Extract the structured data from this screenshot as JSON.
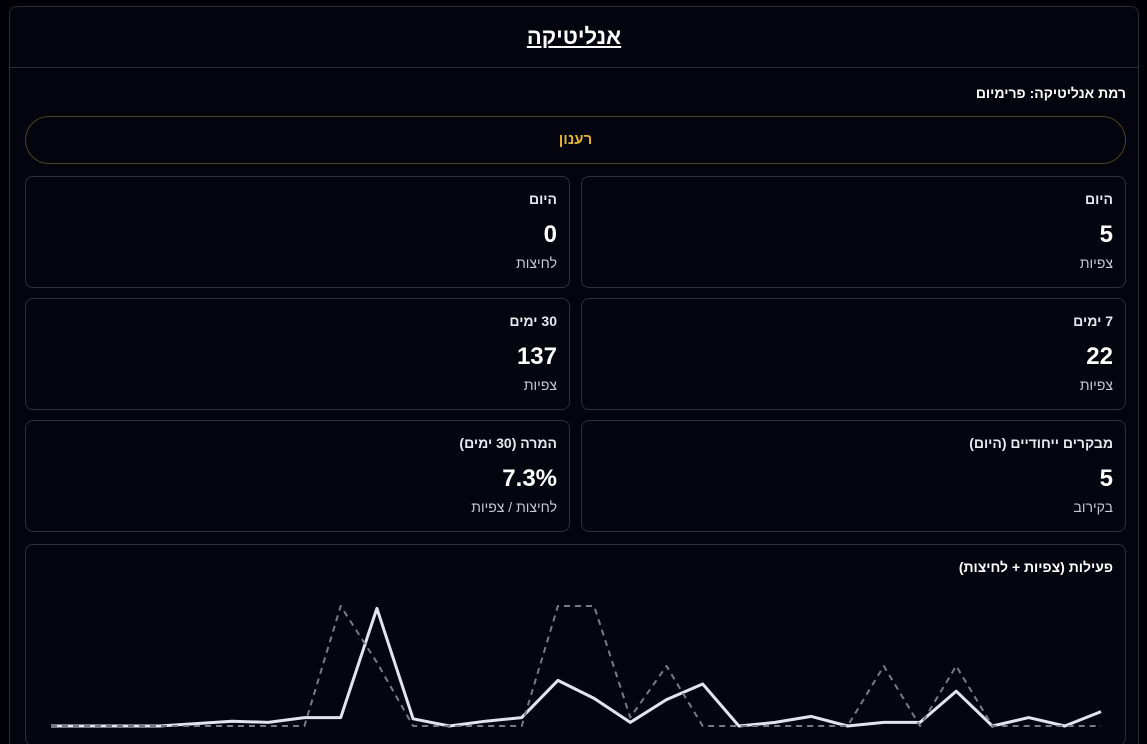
{
  "header": {
    "title": "אנליטיקה"
  },
  "level": "רמת אנליטיקה: פרימיום",
  "refresh": "רענון",
  "cards": [
    {
      "label": "היום",
      "value": "5",
      "sub": "צפיות"
    },
    {
      "label": "היום",
      "value": "0",
      "sub": "לחיצות"
    },
    {
      "label": "7 ימים",
      "value": "22",
      "sub": "צפיות"
    },
    {
      "label": "30 ימים",
      "value": "137",
      "sub": "צפיות"
    },
    {
      "label": "מבקרים ייחודיים (היום)",
      "value": "5",
      "sub": "בקירוב"
    },
    {
      "label": "המרה (30 ימים)",
      "value": "7.3%",
      "sub": "לחיצות / צפיות"
    }
  ],
  "chart_data": {
    "type": "line",
    "title": "פעילות (צפיות + לחיצות)",
    "ylim": [
      0,
      10
    ],
    "series": [
      {
        "color": "#e4e4ee",
        "dashed": false,
        "values": [
          0,
          0,
          0,
          0,
          0.2,
          0.4,
          0.3,
          0.7,
          0.7,
          9.8,
          0.6,
          0,
          0.4,
          0.7,
          3.8,
          2.3,
          0.3,
          2.2,
          3.5,
          0,
          0.3,
          0.8,
          0,
          0.3,
          0.3,
          2.9,
          0,
          0.7,
          0,
          1.2
        ]
      },
      {
        "color": "#7a7a86",
        "dashed": true,
        "values": [
          0,
          0,
          0,
          0,
          0,
          0,
          0,
          0,
          10,
          5.3,
          0,
          0,
          0,
          0,
          10,
          10,
          0.7,
          5,
          0,
          0,
          0,
          0,
          0,
          5,
          0,
          5,
          0,
          0,
          0,
          0
        ]
      }
    ]
  }
}
